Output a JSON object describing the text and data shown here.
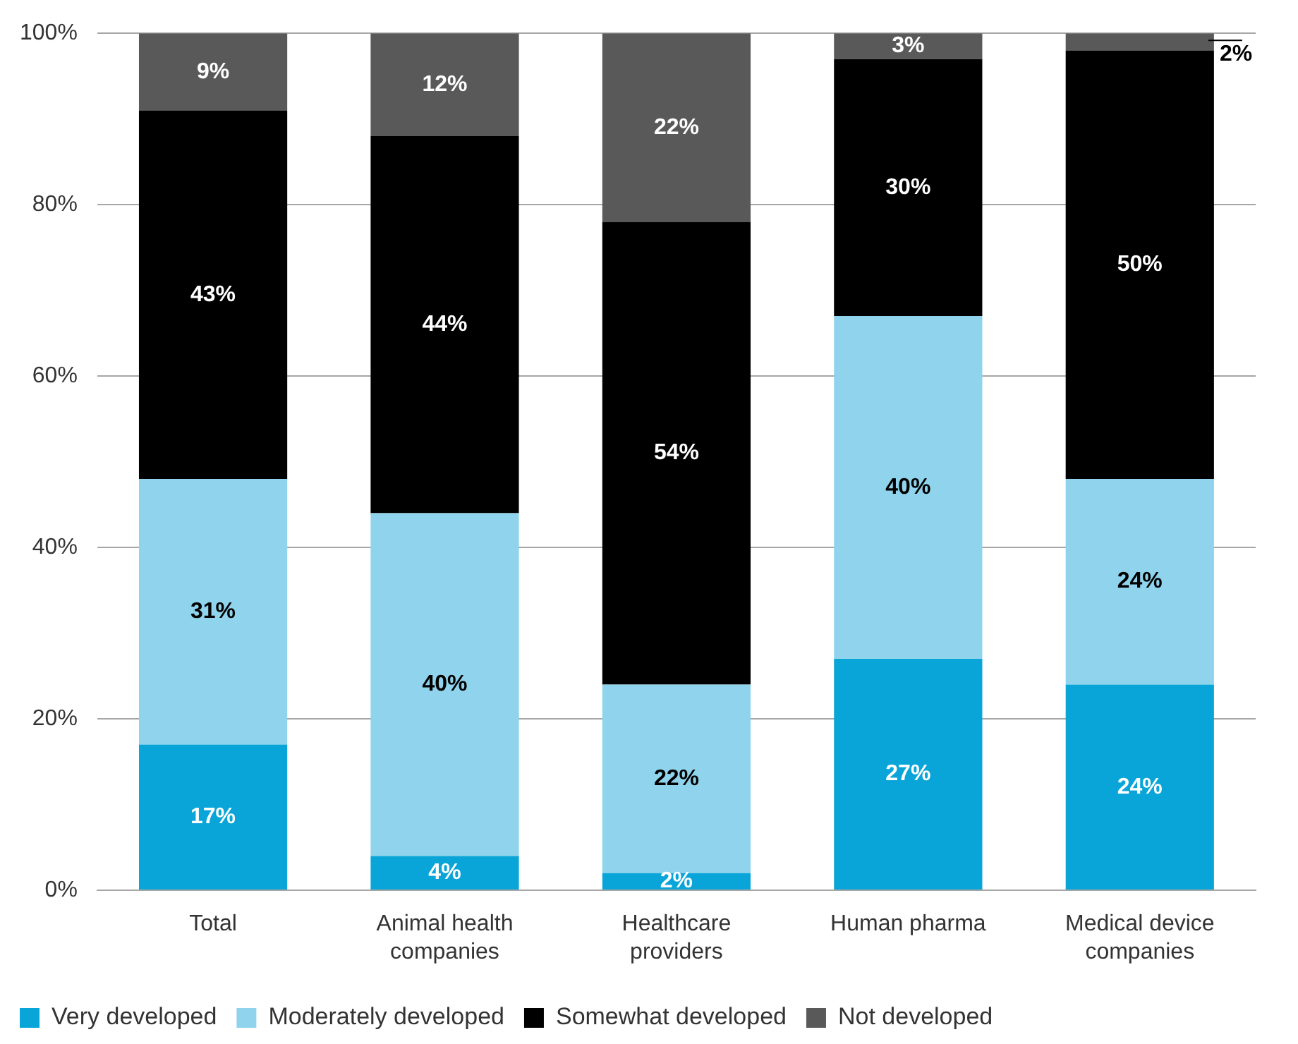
{
  "chart_data": {
    "type": "bar",
    "stacked": true,
    "categories": [
      "Total",
      "Animal health companies",
      "Healthcare providers",
      "Human pharma",
      "Medical device companies"
    ],
    "series": [
      {
        "name": "Very developed",
        "color": "#0aa5d8",
        "values": [
          17,
          4,
          2,
          27,
          24
        ],
        "value_labels": [
          "17%",
          "4%",
          "2%",
          "27%",
          "24%"
        ]
      },
      {
        "name": "Moderately developed",
        "color": "#8fd3ec",
        "values": [
          31,
          40,
          22,
          40,
          24
        ],
        "value_labels": [
          "31%",
          "40%",
          "22%",
          "40%",
          "24%"
        ]
      },
      {
        "name": "Somewhat developed",
        "color": "#000000",
        "values": [
          43,
          44,
          54,
          30,
          50
        ],
        "value_labels": [
          "43%",
          "44%",
          "54%",
          "30%",
          "50%"
        ]
      },
      {
        "name": "Not developed",
        "color": "#595959",
        "values": [
          9,
          12,
          22,
          3,
          2
        ],
        "value_labels": [
          "9%",
          "12%",
          "22%",
          "3%",
          "2%"
        ]
      }
    ],
    "ylim": [
      0,
      100
    ],
    "yticks": [
      {
        "value": 0,
        "label": "0%"
      },
      {
        "value": 20,
        "label": "20%"
      },
      {
        "value": 40,
        "label": "40%"
      },
      {
        "value": 60,
        "label": "60%"
      },
      {
        "value": 80,
        "label": "80%"
      },
      {
        "value": 100,
        "label": "100%"
      }
    ],
    "grid": "y",
    "legend": "bottom left"
  }
}
